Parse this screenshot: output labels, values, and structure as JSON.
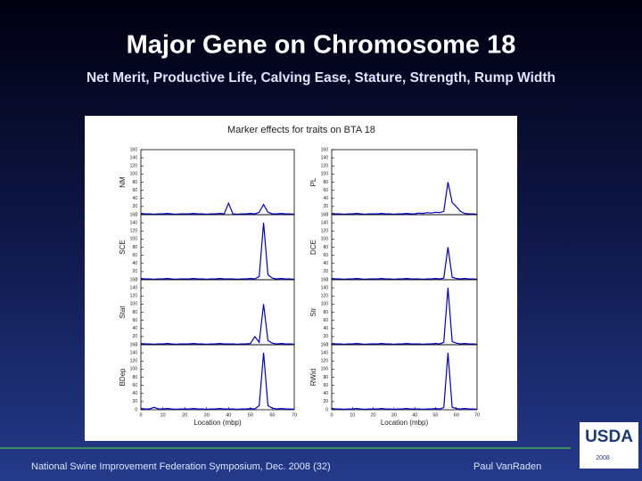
{
  "slide": {
    "title": "Major Gene on Chromosome 18",
    "subtitle": "Net Merit, Productive Life, Calving Ease, Stature, Strength, Rump Width",
    "figure_title": "Marker effects for traits on BTA 18",
    "footer_left": "National Swine Improvement Federation Symposium, Dec. 2008 (32)",
    "footer_right": "Paul VanRaden",
    "logo": "USDA",
    "logo_year": "2008"
  },
  "chart_data": [
    {
      "type": "line",
      "ylabel": "NM",
      "color": "#0000cc",
      "xlim": [
        0,
        70
      ],
      "ylim": [
        0,
        160
      ],
      "yticks": [
        0,
        20,
        40,
        60,
        80,
        100,
        120,
        140,
        160
      ],
      "x": [
        0,
        2,
        4,
        6,
        8,
        10,
        12,
        14,
        16,
        18,
        20,
        22,
        24,
        26,
        28,
        30,
        32,
        34,
        36,
        38,
        40,
        42,
        44,
        46,
        48,
        50,
        52,
        54,
        56,
        58,
        60,
        62,
        64,
        66,
        68,
        70
      ],
      "values": [
        3,
        2,
        2,
        1,
        2,
        2,
        3,
        2,
        1,
        2,
        2,
        2,
        3,
        2,
        2,
        1,
        2,
        2,
        3,
        2,
        28,
        2,
        1,
        2,
        2,
        3,
        2,
        6,
        25,
        6,
        2,
        2,
        3,
        2,
        2,
        1
      ]
    },
    {
      "type": "line",
      "ylabel": "PL",
      "color": "#0000cc",
      "xlim": [
        0,
        70
      ],
      "ylim": [
        0,
        160
      ],
      "yticks": [
        0,
        20,
        40,
        60,
        80,
        100,
        120,
        140,
        160
      ],
      "x": [
        0,
        2,
        4,
        6,
        8,
        10,
        12,
        14,
        16,
        18,
        20,
        22,
        24,
        26,
        28,
        30,
        32,
        34,
        36,
        38,
        40,
        42,
        44,
        46,
        48,
        50,
        52,
        54,
        56,
        58,
        60,
        62,
        64,
        66,
        68,
        70
      ],
      "values": [
        3,
        2,
        2,
        1,
        2,
        2,
        3,
        2,
        1,
        2,
        2,
        2,
        3,
        2,
        2,
        1,
        2,
        2,
        3,
        2,
        2,
        4,
        3,
        5,
        4,
        6,
        5,
        8,
        80,
        30,
        20,
        8,
        3,
        2,
        2,
        1
      ]
    },
    {
      "type": "line",
      "ylabel": "SCE",
      "color": "#0000cc",
      "xlim": [
        0,
        70
      ],
      "ylim": [
        0,
        160
      ],
      "yticks": [
        0,
        20,
        40,
        60,
        80,
        100,
        120,
        140,
        160
      ],
      "x": [
        0,
        2,
        4,
        6,
        8,
        10,
        12,
        14,
        16,
        18,
        20,
        22,
        24,
        26,
        28,
        30,
        32,
        34,
        36,
        38,
        40,
        42,
        44,
        46,
        48,
        50,
        52,
        54,
        56,
        58,
        60,
        62,
        64,
        66,
        68,
        70
      ],
      "values": [
        3,
        2,
        2,
        1,
        2,
        2,
        3,
        2,
        1,
        2,
        2,
        2,
        3,
        2,
        2,
        1,
        2,
        2,
        3,
        2,
        2,
        2,
        1,
        2,
        2,
        3,
        2,
        8,
        140,
        12,
        4,
        2,
        3,
        2,
        2,
        1
      ]
    },
    {
      "type": "line",
      "ylabel": "DCE",
      "color": "#0000cc",
      "xlim": [
        0,
        70
      ],
      "ylim": [
        0,
        160
      ],
      "yticks": [
        0,
        20,
        40,
        60,
        80,
        100,
        120,
        140,
        160
      ],
      "x": [
        0,
        2,
        4,
        6,
        8,
        10,
        12,
        14,
        16,
        18,
        20,
        22,
        24,
        26,
        28,
        30,
        32,
        34,
        36,
        38,
        40,
        42,
        44,
        46,
        48,
        50,
        52,
        54,
        56,
        58,
        60,
        62,
        64,
        66,
        68,
        70
      ],
      "values": [
        3,
        2,
        2,
        1,
        2,
        2,
        3,
        2,
        1,
        2,
        2,
        2,
        3,
        2,
        2,
        1,
        2,
        2,
        3,
        2,
        2,
        2,
        1,
        2,
        2,
        3,
        2,
        4,
        80,
        6,
        3,
        2,
        3,
        2,
        2,
        1
      ]
    },
    {
      "type": "line",
      "ylabel": "Stat",
      "color": "#0000cc",
      "xlim": [
        0,
        70
      ],
      "ylim": [
        0,
        160
      ],
      "yticks": [
        0,
        20,
        40,
        60,
        80,
        100,
        120,
        140,
        160
      ],
      "x": [
        0,
        2,
        4,
        6,
        8,
        10,
        12,
        14,
        16,
        18,
        20,
        22,
        24,
        26,
        28,
        30,
        32,
        34,
        36,
        38,
        40,
        42,
        44,
        46,
        48,
        50,
        52,
        54,
        56,
        58,
        60,
        62,
        64,
        66,
        68,
        70
      ],
      "values": [
        3,
        2,
        2,
        1,
        2,
        2,
        3,
        2,
        1,
        2,
        2,
        2,
        3,
        2,
        2,
        1,
        2,
        2,
        3,
        2,
        2,
        2,
        1,
        2,
        2,
        3,
        20,
        6,
        100,
        10,
        4,
        2,
        3,
        2,
        2,
        1
      ]
    },
    {
      "type": "line",
      "ylabel": "Str",
      "color": "#0000cc",
      "xlim": [
        0,
        70
      ],
      "ylim": [
        0,
        160
      ],
      "yticks": [
        0,
        20,
        40,
        60,
        80,
        100,
        120,
        140,
        160
      ],
      "x": [
        0,
        2,
        4,
        6,
        8,
        10,
        12,
        14,
        16,
        18,
        20,
        22,
        24,
        26,
        28,
        30,
        32,
        34,
        36,
        38,
        40,
        42,
        44,
        46,
        48,
        50,
        52,
        54,
        56,
        58,
        60,
        62,
        64,
        66,
        68,
        70
      ],
      "values": [
        3,
        2,
        2,
        1,
        2,
        2,
        3,
        2,
        1,
        2,
        2,
        2,
        3,
        2,
        2,
        1,
        2,
        2,
        3,
        2,
        2,
        2,
        1,
        2,
        2,
        3,
        2,
        6,
        140,
        8,
        4,
        2,
        3,
        2,
        2,
        1
      ]
    },
    {
      "type": "line",
      "ylabel": "BDep",
      "xlabel": "Location (mbp)",
      "color": "#0000cc",
      "xlim": [
        0,
        70
      ],
      "ylim": [
        0,
        160
      ],
      "xticks": [
        0,
        10,
        20,
        30,
        40,
        50,
        60,
        70
      ],
      "yticks": [
        0,
        20,
        40,
        60,
        80,
        100,
        120,
        140,
        160
      ],
      "x": [
        0,
        2,
        4,
        6,
        8,
        10,
        12,
        14,
        16,
        18,
        20,
        22,
        24,
        26,
        28,
        30,
        32,
        34,
        36,
        38,
        40,
        42,
        44,
        46,
        48,
        50,
        52,
        54,
        56,
        58,
        60,
        62,
        64,
        66,
        68,
        70
      ],
      "values": [
        3,
        2,
        2,
        6,
        2,
        2,
        3,
        2,
        1,
        2,
        2,
        2,
        3,
        2,
        2,
        1,
        2,
        2,
        3,
        2,
        2,
        2,
        1,
        2,
        2,
        3,
        2,
        10,
        140,
        10,
        4,
        2,
        3,
        2,
        2,
        1
      ]
    },
    {
      "type": "line",
      "ylabel": "RWid",
      "xlabel": "Location (mbp)",
      "color": "#0000cc",
      "xlim": [
        0,
        70
      ],
      "ylim": [
        0,
        160
      ],
      "xticks": [
        0,
        10,
        20,
        30,
        40,
        50,
        60,
        70
      ],
      "yticks": [
        0,
        20,
        40,
        60,
        80,
        100,
        120,
        140,
        160
      ],
      "x": [
        0,
        2,
        4,
        6,
        8,
        10,
        12,
        14,
        16,
        18,
        20,
        22,
        24,
        26,
        28,
        30,
        32,
        34,
        36,
        38,
        40,
        42,
        44,
        46,
        48,
        50,
        52,
        54,
        56,
        58,
        60,
        62,
        64,
        66,
        68,
        70
      ],
      "values": [
        3,
        2,
        2,
        1,
        2,
        2,
        3,
        2,
        1,
        2,
        2,
        2,
        3,
        2,
        2,
        1,
        2,
        2,
        3,
        2,
        2,
        2,
        1,
        2,
        2,
        3,
        2,
        5,
        140,
        6,
        3,
        2,
        3,
        2,
        2,
        1
      ]
    }
  ]
}
